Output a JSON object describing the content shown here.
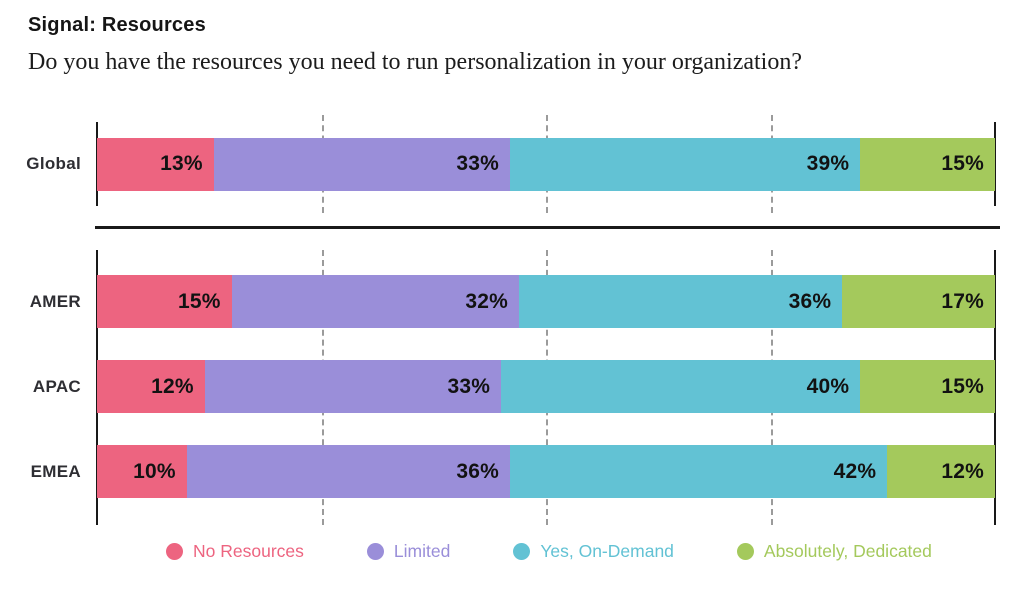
{
  "header": {
    "title": "Signal: Resources",
    "question": "Do you have the resources you need to run personalization in your organization?"
  },
  "colors": {
    "no_resources": "#ED6480",
    "limited": "#9A8ED9",
    "yes_on_demand": "#62C2D4",
    "absolutely_dedicated": "#A4C95C",
    "axis": "#191919",
    "gridline": "#9B9B9B",
    "value_label": "#121212"
  },
  "chart_data": {
    "type": "bar",
    "variant": "horizontal-stacked",
    "title": "Signal: Resources",
    "subtitle": "Do you have the resources you need to run personalization in your organization?",
    "xlabel": "",
    "ylabel": "",
    "xlim": [
      0,
      100
    ],
    "grid": true,
    "gridlines_pct": [
      25,
      50,
      75
    ],
    "value_suffix": "%",
    "legend_position": "bottom",
    "categories": [
      "No Resources",
      "Limited",
      "Yes, On-Demand",
      "Absolutely, Dedicated"
    ],
    "series_colors": [
      "#ED6480",
      "#9A8ED9",
      "#62C2D4",
      "#A4C95C"
    ],
    "groups": [
      {
        "name": "Global",
        "values": [
          13,
          33,
          39,
          15
        ]
      },
      {
        "name": "AMER",
        "values": [
          15,
          32,
          36,
          17
        ]
      },
      {
        "name": "APAC",
        "values": [
          12,
          33,
          40,
          15
        ]
      },
      {
        "name": "EMEA",
        "values": [
          10,
          36,
          42,
          12
        ]
      }
    ]
  },
  "legend": {
    "items": [
      {
        "label": "No Resources",
        "color": "#ED6480"
      },
      {
        "label": "Limited",
        "color": "#9A8ED9"
      },
      {
        "label": "Yes, On-Demand",
        "color": "#62C2D4"
      },
      {
        "label": "Absolutely, Dedicated",
        "color": "#A4C95C"
      }
    ]
  }
}
